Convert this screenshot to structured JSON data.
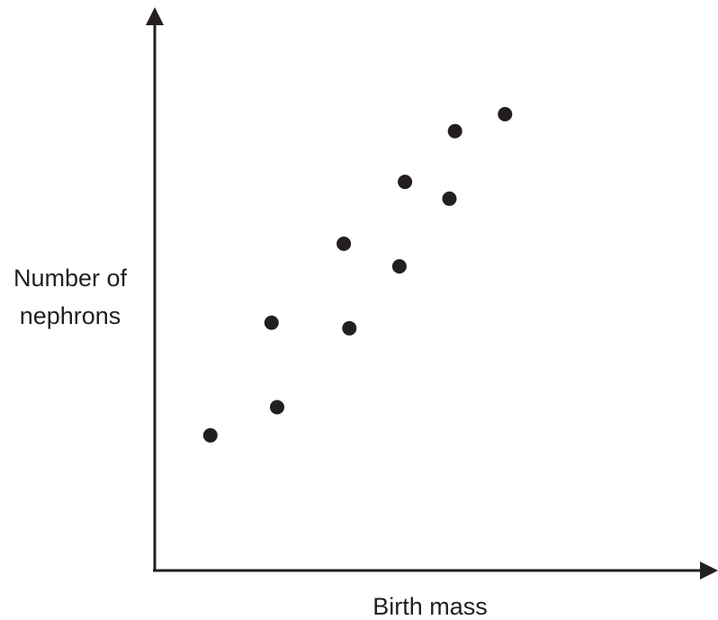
{
  "chart_data": {
    "type": "scatter",
    "title": "",
    "xlabel": "Birth mass",
    "ylabel_lines": [
      "Number of",
      "nephrons"
    ],
    "xlim": [
      0,
      100
    ],
    "ylim": [
      0,
      100
    ],
    "grid": false,
    "legend": "none",
    "axis_ticks": false,
    "series": [
      {
        "points": [
          {
            "x": 10,
            "y": 24
          },
          {
            "x": 22,
            "y": 29
          },
          {
            "x": 21,
            "y": 44
          },
          {
            "x": 35,
            "y": 43
          },
          {
            "x": 34,
            "y": 58
          },
          {
            "x": 44,
            "y": 54
          },
          {
            "x": 45,
            "y": 69
          },
          {
            "x": 53,
            "y": 66
          },
          {
            "x": 54,
            "y": 78
          },
          {
            "x": 63,
            "y": 81
          }
        ]
      }
    ]
  },
  "colors": {
    "ink": "#231f20",
    "background": "#ffffff"
  }
}
